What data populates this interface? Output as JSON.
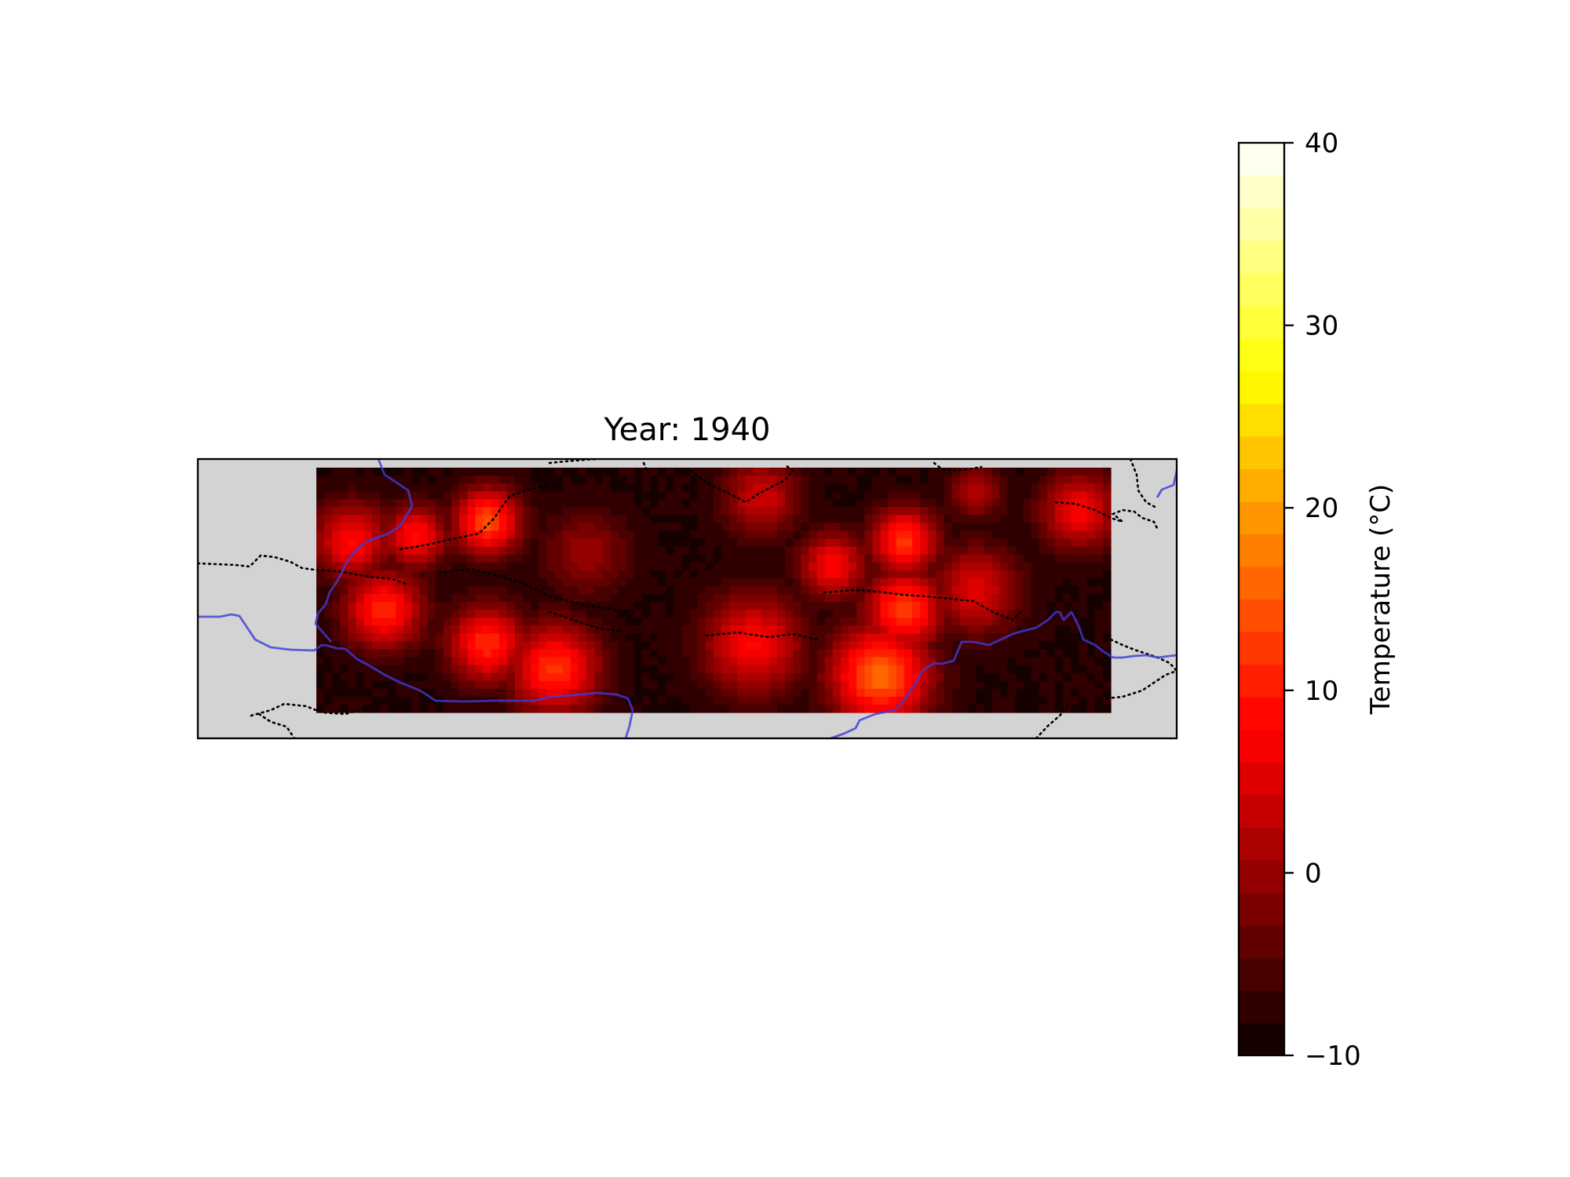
{
  "map": {
    "title": "Year: 1940",
    "land_color": "#d3d3d3",
    "coastline_color": "#3c3cd8",
    "border_style": "dotted",
    "border_color": "#000000"
  },
  "colorbar": {
    "label": "Temperature (°C)",
    "min": -10,
    "max": 40,
    "levels": 28,
    "ticks": [
      -10,
      0,
      10,
      20,
      30,
      40
    ],
    "tick_labels": [
      "−10",
      "0",
      "10",
      "20",
      "30",
      "40"
    ],
    "colormap": "hot",
    "colormap_stops": [
      "#0b0000",
      "#ff0000",
      "#ffff00",
      "#ffffff"
    ]
  },
  "chart_data": {
    "type": "heatmap",
    "title": "Year: 1940",
    "value_unit": "°C",
    "range": [
      -10,
      40
    ],
    "background_value": -9,
    "hotspots": [
      {
        "u": 0.045,
        "v": 0.3,
        "value": 8,
        "spread": 0.035
      },
      {
        "u": 0.085,
        "v": 0.58,
        "value": 11,
        "spread": 0.035
      },
      {
        "u": 0.125,
        "v": 0.28,
        "value": 9,
        "spread": 0.028
      },
      {
        "u": 0.215,
        "v": 0.22,
        "value": 14,
        "spread": 0.03
      },
      {
        "u": 0.215,
        "v": 0.72,
        "value": 11,
        "spread": 0.035
      },
      {
        "u": 0.3,
        "v": 0.82,
        "value": 12,
        "spread": 0.04
      },
      {
        "u": 0.34,
        "v": 0.35,
        "value": 0,
        "spread": 0.04
      },
      {
        "u": 0.56,
        "v": 0.12,
        "value": 4,
        "spread": 0.035
      },
      {
        "u": 0.55,
        "v": 0.72,
        "value": 8,
        "spread": 0.045
      },
      {
        "u": 0.65,
        "v": 0.4,
        "value": 8,
        "spread": 0.03
      },
      {
        "u": 0.74,
        "v": 0.3,
        "value": 12,
        "spread": 0.03
      },
      {
        "u": 0.74,
        "v": 0.58,
        "value": 13,
        "spread": 0.035
      },
      {
        "u": 0.71,
        "v": 0.85,
        "value": 16,
        "spread": 0.045
      },
      {
        "u": 0.83,
        "v": 0.5,
        "value": 5,
        "spread": 0.04
      },
      {
        "u": 0.83,
        "v": 0.1,
        "value": 2,
        "spread": 0.025
      },
      {
        "u": 0.96,
        "v": 0.18,
        "value": 7,
        "spread": 0.035
      }
    ]
  }
}
